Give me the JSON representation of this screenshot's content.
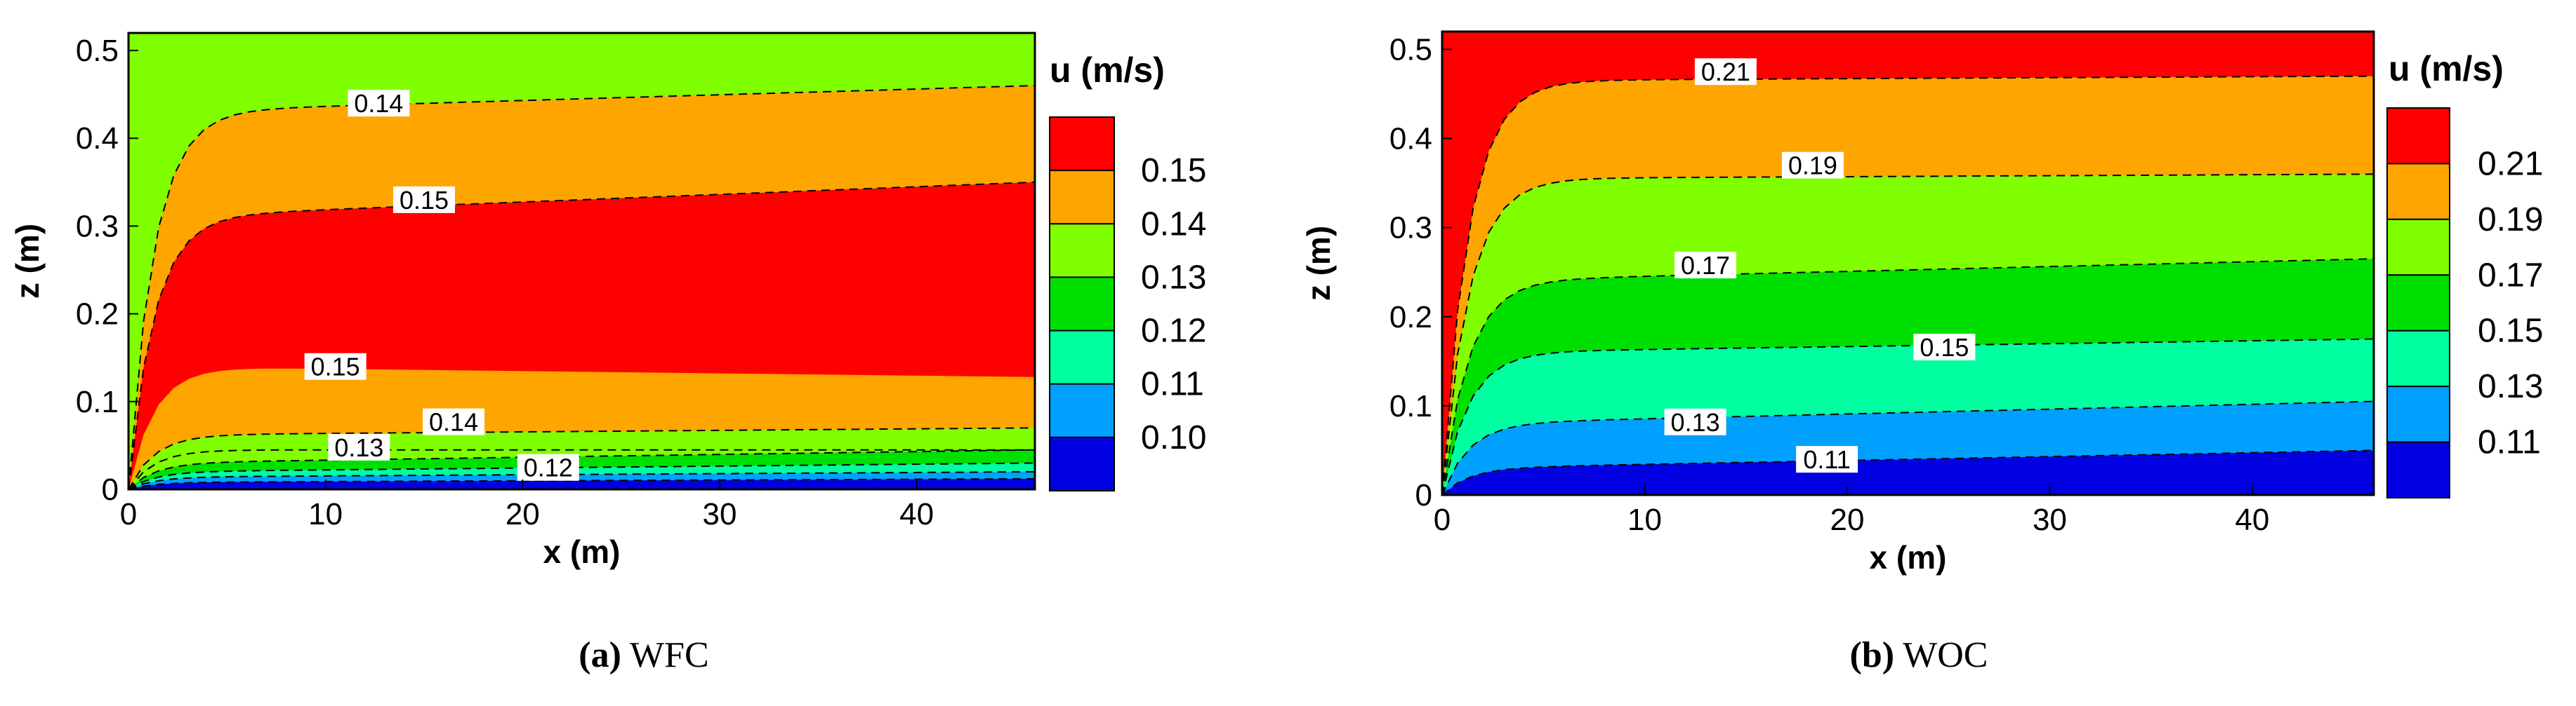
{
  "chart_data": [
    {
      "type": "contour",
      "panel_id": "a",
      "caption_letter": "(a)",
      "caption_text": "WFC",
      "xlabel": "x (m)",
      "ylabel": "z (m)",
      "xlim": [
        0,
        46
      ],
      "ylim": [
        0,
        0.52
      ],
      "xticks": [
        0,
        10,
        20,
        30,
        40
      ],
      "yticks": [
        0,
        0.1,
        0.2,
        0.3,
        0.4,
        0.5
      ],
      "legend_title": "u (m/s)",
      "legend_levels": [
        "0.15",
        "0.14",
        "0.13",
        "0.12",
        "0.11",
        "0.10"
      ],
      "legend_colors": [
        "#ff0000",
        "#ffa500",
        "#80ff00",
        "#00e000",
        "#00ffa0",
        "#00a0ff",
        "#0000e0"
      ],
      "bands": [
        {
          "z_left": 0.0,
          "z_right": 0.0,
          "color": "#0000e0"
        },
        {
          "z_left": 0.008,
          "z_right": 0.012,
          "color": "#00a0ff"
        },
        {
          "z_left": 0.014,
          "z_right": 0.02,
          "color": "#00ffa0"
        },
        {
          "z_left": 0.02,
          "z_right": 0.03,
          "color": "#00e000"
        },
        {
          "z_left": 0.03,
          "z_right": 0.045,
          "color": "#80ff00"
        },
        {
          "z_left": 0.062,
          "z_right": 0.07,
          "color": "#ffa500"
        },
        {
          "z_left": 0.14,
          "z_right": 0.128,
          "color": "#ff0000"
        },
        {
          "z_left": 0.31,
          "z_right": 0.35,
          "color": "#ffa500"
        },
        {
          "z_left": 0.43,
          "z_right": 0.46,
          "color": "#80ff00"
        }
      ],
      "contour_lines": [
        0.008,
        0.014,
        0.02,
        0.03,
        0.045,
        0.062,
        0.31,
        0.43
      ],
      "contour_labels": [
        {
          "text": "0.14",
          "x": 12.7,
          "z": 0.44
        },
        {
          "text": "0.15",
          "x": 15.0,
          "z": 0.33
        },
        {
          "text": "0.15",
          "x": 10.5,
          "z": 0.14
        },
        {
          "text": "0.14",
          "x": 16.5,
          "z": 0.077
        },
        {
          "text": "0.13",
          "x": 11.7,
          "z": 0.048
        },
        {
          "text": "0.12",
          "x": 21.3,
          "z": 0.025
        }
      ]
    },
    {
      "type": "contour",
      "panel_id": "b",
      "caption_letter": "(b)",
      "caption_text": "WOC",
      "xlabel": "x (m)",
      "ylabel": "z (m)",
      "xlim": [
        0,
        46
      ],
      "ylim": [
        0,
        0.52
      ],
      "xticks": [
        0,
        10,
        20,
        30,
        40
      ],
      "yticks": [
        0,
        0.1,
        0.2,
        0.3,
        0.4,
        0.5
      ],
      "legend_title": "u (m/s)",
      "legend_levels": [
        "0.21",
        "0.19",
        "0.17",
        "0.15",
        "0.13",
        "0.11"
      ],
      "legend_colors": [
        "#ff0000",
        "#ffa500",
        "#80ff00",
        "#00e000",
        "#00ffa0",
        "#00a0ff",
        "#0000e0"
      ],
      "bands": [
        {
          "z_left": 0.0,
          "z_right": 0.0,
          "color": "#0000e0"
        },
        {
          "z_left": 0.03,
          "z_right": 0.05,
          "color": "#00a0ff"
        },
        {
          "z_left": 0.08,
          "z_right": 0.105,
          "color": "#00ffa0"
        },
        {
          "z_left": 0.16,
          "z_right": 0.175,
          "color": "#00e000"
        },
        {
          "z_left": 0.24,
          "z_right": 0.265,
          "color": "#80ff00"
        },
        {
          "z_left": 0.355,
          "z_right": 0.36,
          "color": "#ffa500"
        },
        {
          "z_left": 0.465,
          "z_right": 0.47,
          "color": "#ff0000"
        }
      ],
      "contour_lines": [
        0.03,
        0.08,
        0.16,
        0.24,
        0.355,
        0.465
      ],
      "contour_labels": [
        {
          "text": "0.21",
          "x": 14.0,
          "z": 0.475
        },
        {
          "text": "0.19",
          "x": 18.3,
          "z": 0.37
        },
        {
          "text": "0.17",
          "x": 13.0,
          "z": 0.258
        },
        {
          "text": "0.15",
          "x": 24.8,
          "z": 0.166
        },
        {
          "text": "0.13",
          "x": 12.5,
          "z": 0.082
        },
        {
          "text": "0.11",
          "x": 19.0,
          "z": 0.04
        }
      ]
    }
  ]
}
